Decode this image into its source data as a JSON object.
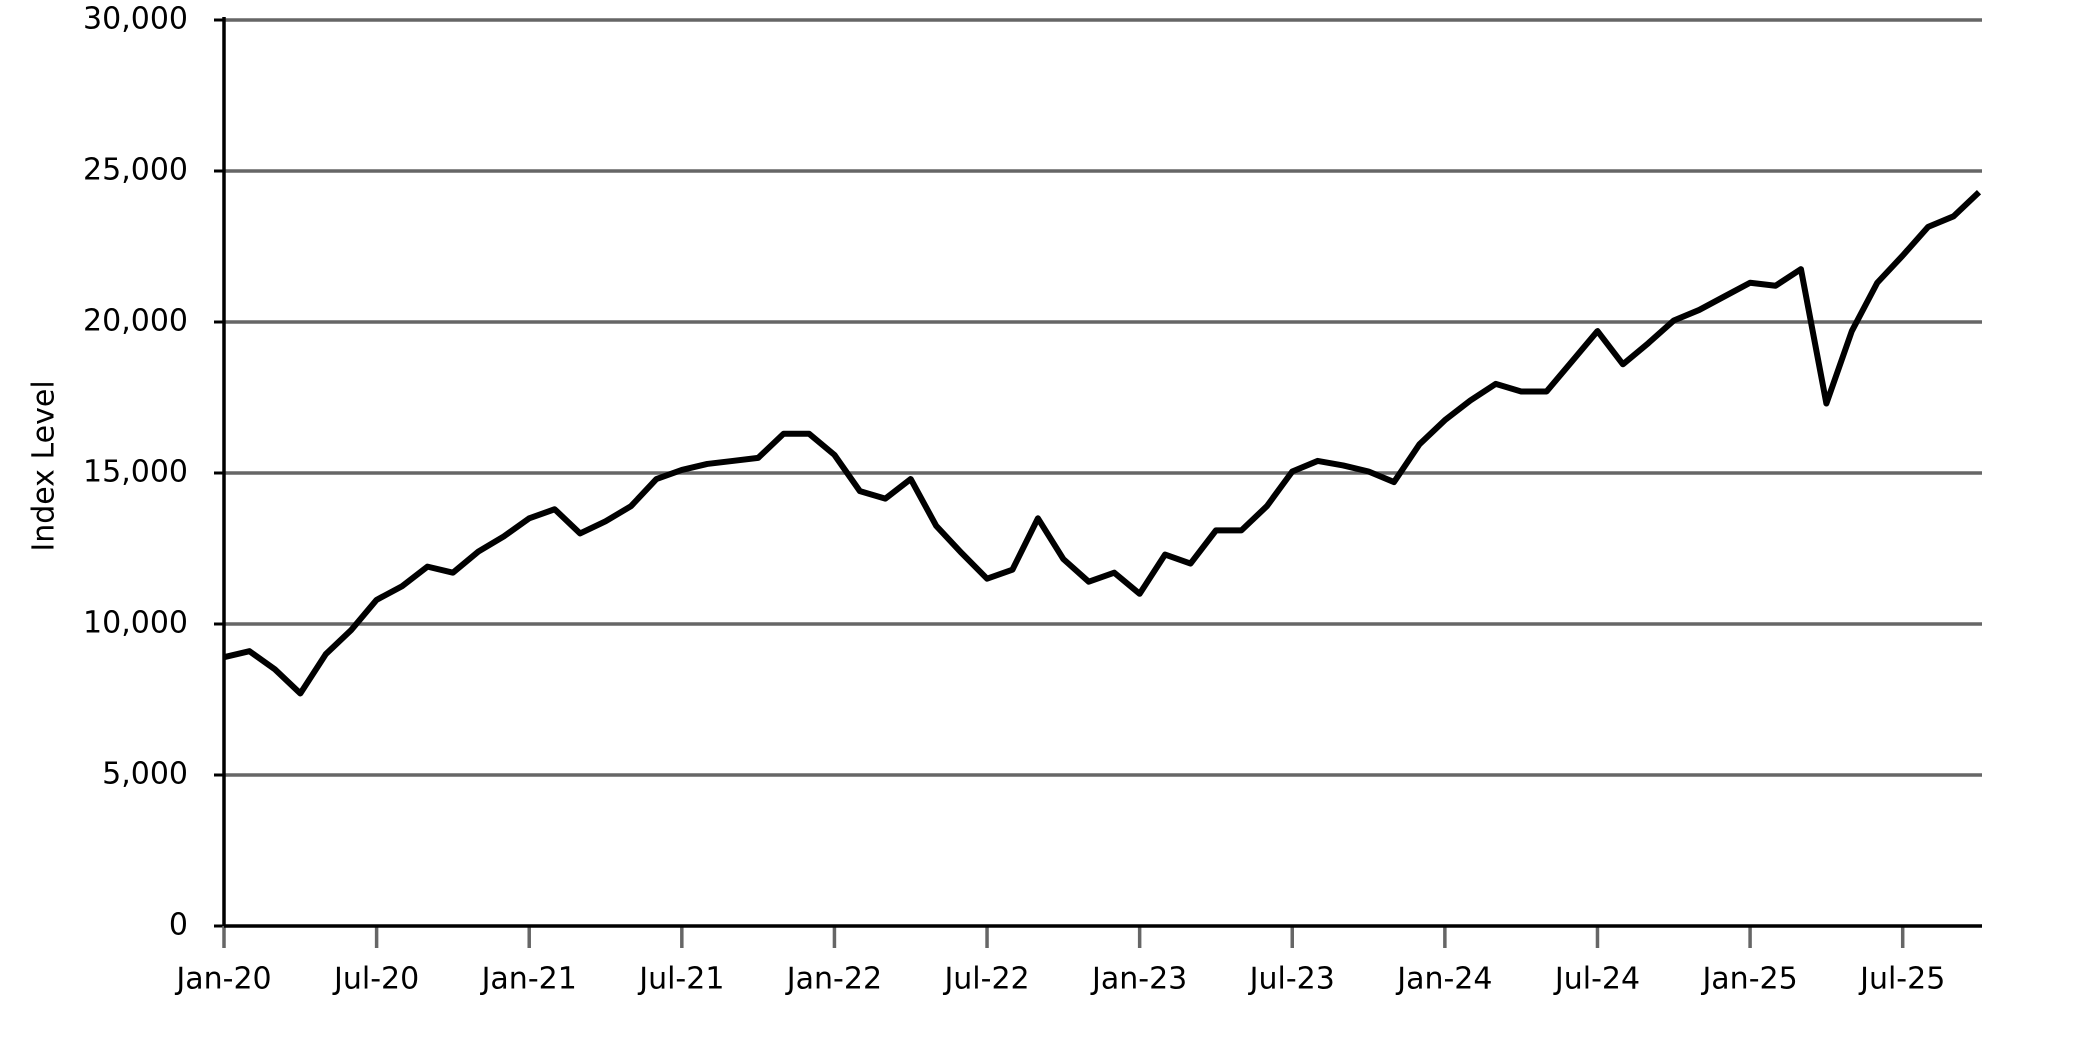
{
  "chart_data": {
    "type": "line",
    "y_label": "Index Level",
    "x": [
      "2020-01",
      "2020-02",
      "2020-03",
      "2020-04",
      "2020-05",
      "2020-06",
      "2020-07",
      "2020-08",
      "2020-09",
      "2020-10",
      "2020-11",
      "2020-12",
      "2021-01",
      "2021-02",
      "2021-03",
      "2021-04",
      "2021-05",
      "2021-06",
      "2021-07",
      "2021-08",
      "2021-09",
      "2021-10",
      "2021-11",
      "2021-12",
      "2022-01",
      "2022-02",
      "2022-03",
      "2022-04",
      "2022-05",
      "2022-06",
      "2022-07",
      "2022-08",
      "2022-09",
      "2022-10",
      "2022-11",
      "2022-12",
      "2023-01",
      "2023-02",
      "2023-03",
      "2023-04",
      "2023-05",
      "2023-06",
      "2023-07",
      "2023-08",
      "2023-09",
      "2023-10",
      "2023-11",
      "2023-12",
      "2024-01",
      "2024-02",
      "2024-03",
      "2024-04",
      "2024-05",
      "2024-06",
      "2024-07",
      "2024-08",
      "2024-09",
      "2024-10",
      "2024-11",
      "2024-12",
      "2025-01",
      "2025-02",
      "2025-03",
      "2025-04",
      "2025-05",
      "2025-06",
      "2025-07",
      "2025-08",
      "2025-09",
      "2025-10"
    ],
    "series": [
      {
        "color": "#000000",
        "values": [
          8900,
          9100,
          8500,
          7700,
          9000,
          9800,
          10800,
          11250,
          11900,
          11700,
          12400,
          12900,
          13500,
          13800,
          13000,
          13400,
          13900,
          14800,
          15100,
          15300,
          15400,
          15500,
          16300,
          16300,
          15600,
          14400,
          14150,
          14800,
          13250,
          12350,
          11500,
          11800,
          13500,
          12150,
          11400,
          11700,
          11000,
          12300,
          12000,
          13100,
          13100,
          13900,
          15050,
          15400,
          15250,
          15050,
          14700,
          15950,
          16750,
          17400,
          17950,
          17700,
          17700,
          18700,
          19700,
          18600,
          19300,
          20050,
          20400,
          20850,
          21300,
          21200,
          21750,
          17300,
          19700,
          21300,
          22200,
          23150,
          23500,
          24300
        ]
      }
    ],
    "xlim": [
      "2020-01",
      "2025-10"
    ],
    "xticks": [
      {
        "value": "2020-01",
        "label": "Jan-20"
      },
      {
        "value": "2020-07",
        "label": "Jul-20"
      },
      {
        "value": "2021-01",
        "label": "Jan-21"
      },
      {
        "value": "2021-07",
        "label": "Jul-21"
      },
      {
        "value": "2022-01",
        "label": "Jan-22"
      },
      {
        "value": "2022-07",
        "label": "Jul-22"
      },
      {
        "value": "2023-01",
        "label": "Jan-23"
      },
      {
        "value": "2023-07",
        "label": "Jul-23"
      },
      {
        "value": "2024-01",
        "label": "Jan-24"
      },
      {
        "value": "2024-07",
        "label": "Jul-24"
      },
      {
        "value": "2025-01",
        "label": "Jan-25"
      },
      {
        "value": "2025-07",
        "label": "Jul-25"
      }
    ],
    "ylim": [
      0,
      30000
    ],
    "yticks": [
      0,
      {
        "value": 5000,
        "label": "5,000"
      },
      {
        "value": 10000,
        "label": "10,000"
      },
      {
        "value": 15000,
        "label": "15,000"
      },
      {
        "value": 20000,
        "label": "20,000"
      },
      {
        "value": 25000,
        "label": "25,000"
      },
      {
        "value": 30000,
        "label": "30,000"
      }
    ],
    "grid": true
  }
}
